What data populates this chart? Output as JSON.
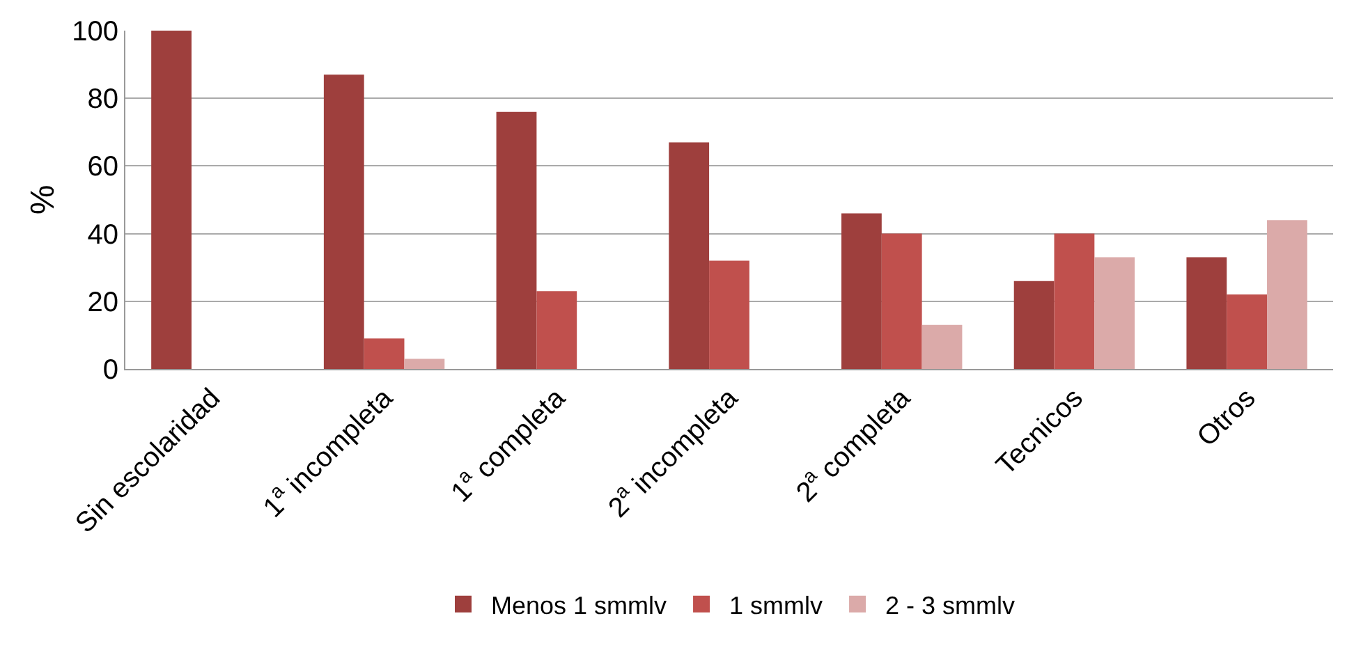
{
  "chart_data": {
    "type": "bar",
    "ylabel": "%",
    "categories": [
      "Sin escolaridad",
      "1$^{a}$ incompleta",
      "1$^{a}$ completa",
      "2$^{a}$ incompleta",
      "2$^{a}$ completa",
      "Tecnicos",
      "Otros"
    ],
    "series": [
      {
        "name": "Menos 1 smmlv",
        "color": "#9e3f3d",
        "values": [
          100,
          87,
          76,
          67,
          46,
          26,
          33
        ]
      },
      {
        "name": "1 smmlv",
        "color": "#c0504d",
        "values": [
          0,
          9,
          23,
          32,
          40,
          40,
          22
        ]
      },
      {
        "name": "2 - 3 smmlv",
        "color": "#dbaaa9",
        "values": [
          0,
          3,
          0,
          0,
          13,
          33,
          44
        ]
      }
    ],
    "ylim": [
      0,
      100
    ],
    "yticks": [
      0,
      20,
      40,
      60,
      80,
      100
    ],
    "grid": "y",
    "legend": "bottom"
  }
}
